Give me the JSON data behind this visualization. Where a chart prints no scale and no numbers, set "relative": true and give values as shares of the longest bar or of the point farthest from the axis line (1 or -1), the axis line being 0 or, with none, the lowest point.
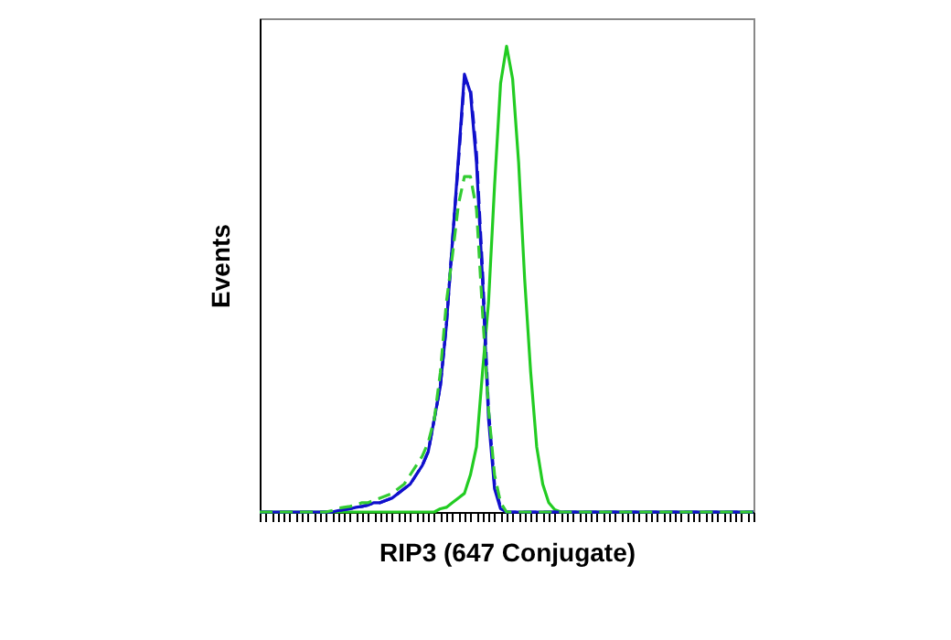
{
  "chart_data": {
    "type": "line",
    "relative": true,
    "xlabel": "RIP3 (647 Conjugate)",
    "ylabel": "Events",
    "grid": false,
    "marker": "none",
    "tick_labels": false,
    "categories": [
      null,
      null,
      null,
      null,
      null,
      null,
      null,
      null,
      null,
      null,
      null,
      null,
      null,
      null,
      null,
      null,
      null,
      null,
      null,
      null,
      null,
      null,
      null,
      null,
      null,
      null,
      null,
      null,
      null,
      null,
      null,
      null,
      null,
      null,
      null,
      null,
      null,
      null,
      null,
      null,
      null,
      null,
      null,
      null,
      null,
      null,
      null,
      null,
      null,
      null,
      null,
      null,
      null,
      null,
      null,
      null,
      null,
      null,
      null,
      null,
      null,
      null,
      null,
      null,
      null,
      null,
      null,
      null,
      null,
      null,
      null,
      null,
      null,
      null,
      null,
      null,
      null,
      null,
      null,
      null,
      null,
      null,
      null
    ],
    "series": [
      {
        "color": "#22cc22",
        "line_style": "solid",
        "values": [
          0,
          0,
          0,
          0,
          0,
          0,
          0,
          0,
          0,
          0,
          0,
          0,
          0,
          0,
          0,
          0,
          0,
          0,
          0,
          0,
          0,
          0,
          0,
          0,
          0,
          0,
          0,
          0,
          0,
          0,
          0.007,
          0.01,
          0.02,
          0.03,
          0.04,
          0.08,
          0.14,
          0.3,
          0.45,
          0.7,
          0.92,
          1.0,
          0.93,
          0.75,
          0.5,
          0.3,
          0.14,
          0.06,
          0.02,
          0.005,
          0,
          0,
          0,
          0,
          0,
          0,
          0,
          0,
          0,
          0,
          0,
          0,
          0,
          0,
          0,
          0,
          0,
          0,
          0,
          0,
          0,
          0,
          0,
          0,
          0,
          0,
          0,
          0,
          0,
          0,
          0,
          0,
          0
        ]
      },
      {
        "color": "#1010cc",
        "line_style": "solid",
        "values": [
          0,
          0,
          0,
          0,
          0,
          0,
          0,
          0,
          0,
          0,
          0,
          0,
          0,
          0.003,
          0.005,
          0.007,
          0.01,
          0.012,
          0.015,
          0.02,
          0.02,
          0.025,
          0.03,
          0.04,
          0.05,
          0.06,
          0.08,
          0.1,
          0.13,
          0.2,
          0.27,
          0.4,
          0.58,
          0.76,
          0.94,
          0.9,
          0.75,
          0.5,
          0.2,
          0.05,
          0.007,
          0,
          0,
          0,
          0,
          0,
          0,
          0,
          0,
          0,
          0,
          0,
          0,
          0,
          0,
          0,
          0,
          0,
          0,
          0,
          0,
          0,
          0,
          0,
          0,
          0,
          0,
          0,
          0,
          0,
          0,
          0,
          0,
          0,
          0,
          0,
          0,
          0,
          0,
          0,
          0,
          0,
          0
        ]
      },
      {
        "color": "#1010cc",
        "line_style": "dashed",
        "values": [
          0,
          0,
          0,
          0,
          0,
          0,
          0,
          0,
          0,
          0,
          0,
          0,
          0,
          0.003,
          0.005,
          0.007,
          0.01,
          0.012,
          0.015,
          0.02,
          0.02,
          0.025,
          0.03,
          0.04,
          0.05,
          0.06,
          0.08,
          0.1,
          0.13,
          0.2,
          0.27,
          0.4,
          0.58,
          0.75,
          0.93,
          0.91,
          0.77,
          0.52,
          0.22,
          0.06,
          0.01,
          0,
          0,
          0,
          0,
          0,
          0,
          0,
          0,
          0,
          0,
          0,
          0,
          0,
          0,
          0,
          0,
          0,
          0,
          0,
          0,
          0,
          0,
          0,
          0,
          0,
          0,
          0,
          0,
          0,
          0,
          0,
          0,
          0,
          0,
          0,
          0,
          0,
          0,
          0,
          0,
          0,
          0
        ]
      },
      {
        "color": "#33cc33",
        "line_style": "dashed",
        "values": [
          0,
          0,
          0,
          0,
          0,
          0,
          0,
          0,
          0,
          0,
          0,
          0,
          0.003,
          0.008,
          0.01,
          0.012,
          0.015,
          0.02,
          0.02,
          0.025,
          0.03,
          0.035,
          0.04,
          0.05,
          0.06,
          0.08,
          0.1,
          0.12,
          0.15,
          0.2,
          0.3,
          0.45,
          0.55,
          0.66,
          0.72,
          0.72,
          0.65,
          0.43,
          0.22,
          0.08,
          0.02,
          0,
          0,
          0,
          0,
          0,
          0,
          0,
          0,
          0,
          0,
          0,
          0,
          0,
          0,
          0,
          0,
          0,
          0,
          0,
          0,
          0,
          0,
          0,
          0,
          0,
          0,
          0,
          0,
          0,
          0,
          0,
          0,
          0,
          0,
          0,
          0,
          0,
          0,
          0,
          0,
          0,
          0
        ]
      }
    ]
  }
}
